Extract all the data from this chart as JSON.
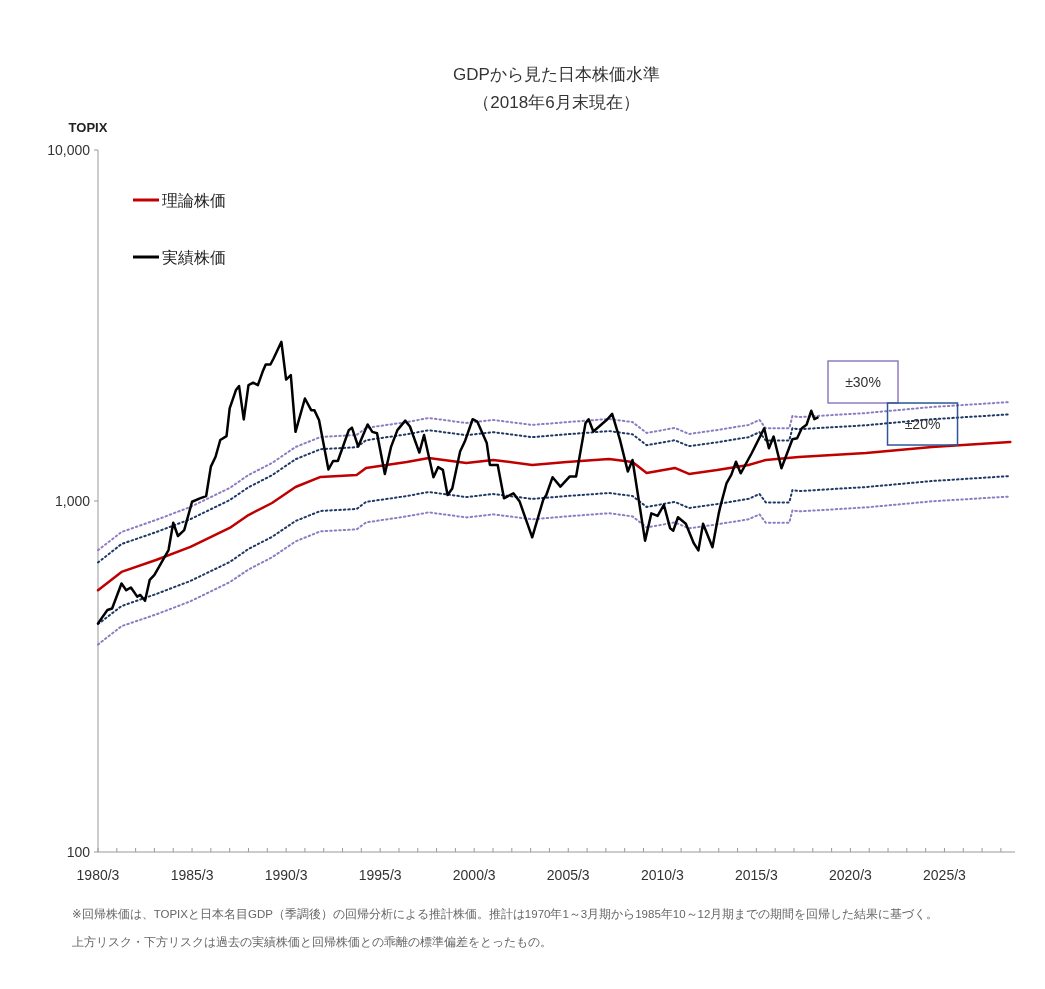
{
  "chart_data": {
    "type": "line",
    "title": "GDPから見た日本株価水準",
    "subtitle": "（2018年6月末現在）",
    "ylabel": "TOPIX",
    "log": true,
    "legend": "top left",
    "grid": false,
    "ylim": [
      100,
      10000
    ],
    "yticks": [
      {
        "value": 100,
        "label": "100"
      },
      {
        "value": 1000,
        "label": "1,000"
      },
      {
        "value": 10000,
        "label": "10,000"
      }
    ],
    "xlim": [
      "1980-03",
      "2028-12"
    ],
    "xticks": [
      {
        "value": "1980-03",
        "label": "1980/3"
      },
      {
        "value": "1981-03",
        "label": null
      },
      {
        "value": "1982-03",
        "label": null
      },
      {
        "value": "1983-03",
        "label": null
      },
      {
        "value": "1984-03",
        "label": null
      },
      {
        "value": "1985-03",
        "label": "1985/3"
      },
      {
        "value": "1986-03",
        "label": null
      },
      {
        "value": "1987-03",
        "label": null
      },
      {
        "value": "1988-03",
        "label": null
      },
      {
        "value": "1989-03",
        "label": null
      },
      {
        "value": "1990-03",
        "label": "1990/3"
      },
      {
        "value": "1991-03",
        "label": null
      },
      {
        "value": "1992-03",
        "label": null
      },
      {
        "value": "1993-03",
        "label": null
      },
      {
        "value": "1994-03",
        "label": null
      },
      {
        "value": "1995-03",
        "label": "1995/3"
      },
      {
        "value": "1996-03",
        "label": null
      },
      {
        "value": "1997-03",
        "label": null
      },
      {
        "value": "1998-03",
        "label": null
      },
      {
        "value": "1999-03",
        "label": null
      },
      {
        "value": "2000-03",
        "label": "2000/3"
      },
      {
        "value": "2001-03",
        "label": null
      },
      {
        "value": "2002-03",
        "label": null
      },
      {
        "value": "2003-03",
        "label": null
      },
      {
        "value": "2004-03",
        "label": null
      },
      {
        "value": "2005-03",
        "label": "2005/3"
      },
      {
        "value": "2006-03",
        "label": null
      },
      {
        "value": "2007-03",
        "label": null
      },
      {
        "value": "2008-03",
        "label": null
      },
      {
        "value": "2009-03",
        "label": null
      },
      {
        "value": "2010-03",
        "label": "2010/3"
      },
      {
        "value": "2011-03",
        "label": null
      },
      {
        "value": "2012-03",
        "label": null
      },
      {
        "value": "2013-03",
        "label": null
      },
      {
        "value": "2014-03",
        "label": null
      },
      {
        "value": "2015-03",
        "label": "2015/3"
      },
      {
        "value": "2016-03",
        "label": null
      },
      {
        "value": "2017-03",
        "label": null
      },
      {
        "value": "2018-03",
        "label": null
      },
      {
        "value": "2019-03",
        "label": null
      },
      {
        "value": "2020-03",
        "label": "2020/3"
      },
      {
        "value": "2021-03",
        "label": null
      },
      {
        "value": "2022-03",
        "label": null
      },
      {
        "value": "2023-03",
        "label": null
      },
      {
        "value": "2024-03",
        "label": null
      },
      {
        "value": "2025-03",
        "label": "2025/3"
      },
      {
        "value": "2026-03",
        "label": null
      },
      {
        "value": "2027-03",
        "label": null
      },
      {
        "value": "2028-03",
        "label": null
      }
    ],
    "series": [
      {
        "color": "#8e7cc3",
        "line_style": "dotted",
        "x": [
          "1980-03",
          "1981-06",
          "1983-04",
          "1985-02",
          "1987-03",
          "1988-03",
          "1989-06",
          "1990-09",
          "1992-01",
          "1993-12",
          "1994-06",
          "1996-08",
          "1997-10",
          "1999-10",
          "2001-03",
          "2003-04",
          "2005-02",
          "2007-05",
          "2008-08",
          "2009-05",
          "2010-11",
          "2011-08",
          "2013-02",
          "2014-10",
          "2015-05",
          "2015-09",
          "2016-12",
          "2017-02",
          "2017-06",
          "2021-01",
          "2024-07",
          "2028-09"
        ],
        "values": [
          724,
          816,
          883,
          962,
          1089,
          1186,
          1283,
          1425,
          1522,
          1542,
          1615,
          1678,
          1724,
          1668,
          1702,
          1647,
          1678,
          1713,
          1678,
          1563,
          1615,
          1552,
          1593,
          1647,
          1702,
          1611,
          1611,
          1746,
          1734,
          1781,
          1853,
          1914
        ]
      },
      {
        "color": "#1f3864",
        "line_style": "dotted",
        "x": [
          "1980-03",
          "1981-06",
          "1983-04",
          "1985-02",
          "1987-03",
          "1988-03",
          "1989-06",
          "1990-09",
          "1992-01",
          "1993-12",
          "1994-06",
          "1996-08",
          "1997-10",
          "1999-10",
          "2001-03",
          "2003-04",
          "2005-02",
          "2007-05",
          "2008-08",
          "2009-05",
          "2010-11",
          "2011-08",
          "2013-02",
          "2014-10",
          "2015-05",
          "2015-09",
          "2016-12",
          "2017-02",
          "2017-06",
          "2021-01",
          "2024-07",
          "2028-09"
        ],
        "values": [
          668,
          754,
          815,
          888,
          1006,
          1094,
          1184,
          1315,
          1405,
          1423,
          1490,
          1549,
          1591,
          1540,
          1571,
          1520,
          1549,
          1582,
          1549,
          1442,
          1490,
          1433,
          1470,
          1520,
          1571,
          1487,
          1487,
          1612,
          1601,
          1644,
          1710,
          1766
        ]
      },
      {
        "color": "#1f3864",
        "line_style": "dotted",
        "x": [
          "1980-03",
          "1981-06",
          "1983-04",
          "1985-02",
          "1987-03",
          "1988-03",
          "1989-06",
          "1990-09",
          "1992-01",
          "1993-12",
          "1994-06",
          "1996-08",
          "1997-10",
          "1999-10",
          "2001-03",
          "2003-04",
          "2005-02",
          "2007-05",
          "2008-08",
          "2009-05",
          "2010-11",
          "2011-08",
          "2013-02",
          "2014-10",
          "2015-05",
          "2015-09",
          "2016-12",
          "2017-02",
          "2017-06",
          "2021-01",
          "2024-07",
          "2028-09"
        ],
        "values": [
          446,
          502,
          543,
          592,
          670,
          730,
          790,
          877,
          937,
          949,
          994,
          1033,
          1061,
          1026,
          1047,
          1014,
          1033,
          1054,
          1033,
          962,
          994,
          955,
          980,
          1014,
          1047,
          991,
          991,
          1074,
          1067,
          1096,
          1140,
          1178
        ]
      },
      {
        "color": "#8e7cc3",
        "line_style": "dotted",
        "x": [
          "1980-03",
          "1981-06",
          "1983-04",
          "1985-02",
          "1987-03",
          "1988-03",
          "1989-06",
          "1990-09",
          "1992-01",
          "1993-12",
          "1994-06",
          "1996-08",
          "1997-10",
          "1999-10",
          "2001-03",
          "2003-04",
          "2005-02",
          "2007-05",
          "2008-08",
          "2009-05",
          "2010-11",
          "2011-08",
          "2013-02",
          "2014-10",
          "2015-05",
          "2015-09",
          "2016-12",
          "2017-02",
          "2017-06",
          "2021-01",
          "2024-07",
          "2028-09"
        ],
        "values": [
          390,
          440,
          475,
          518,
          587,
          638,
          691,
          767,
          820,
          830,
          869,
          904,
          928,
          898,
          916,
          887,
          904,
          923,
          904,
          841,
          869,
          836,
          858,
          887,
          916,
          867,
          867,
          940,
          934,
          959,
          998,
          1030
        ]
      },
      {
        "name": "理論株価",
        "color": "#c00000",
        "line_style": "solid",
        "x": [
          "1980-03",
          "1981-06",
          "1983-04",
          "1985-02",
          "1987-03",
          "1988-03",
          "1989-06",
          "1990-09",
          "1992-01",
          "1993-12",
          "1994-06",
          "1996-08",
          "1997-10",
          "1999-10",
          "2001-03",
          "2003-04",
          "2005-02",
          "2007-05",
          "2008-08",
          "2009-05",
          "2010-11",
          "2011-08",
          "2013-02",
          "2014-10",
          "2015-09",
          "2017-06",
          "2021-01",
          "2024-07",
          "2028-09"
        ],
        "values": [
          557,
          628,
          679,
          740,
          838,
          912,
          987,
          1096,
          1171,
          1186,
          1242,
          1291,
          1326,
          1283,
          1309,
          1267,
          1291,
          1318,
          1291,
          1202,
          1242,
          1194,
          1225,
          1267,
          1309,
          1334,
          1370,
          1425,
          1472
        ]
      },
      {
        "name": "実績株価",
        "color": "#000000",
        "line_style": "solid",
        "x": [
          "1980-03",
          "1980-09",
          "1980-12",
          "1981-06",
          "1981-09",
          "1981-12",
          "1982-04",
          "1982-06",
          "1982-09",
          "1982-12",
          "1983-03",
          "1983-12",
          "1984-03",
          "1984-06",
          "1984-10",
          "1985-03",
          "1985-08",
          "1985-12",
          "1986-03",
          "1986-06",
          "1986-09",
          "1987-01",
          "1987-03",
          "1987-07",
          "1987-09",
          "1987-12",
          "1988-03",
          "1988-06",
          "1988-09",
          "1988-12",
          "1989-02",
          "1989-05",
          "1989-07",
          "1989-12",
          "1990-03",
          "1990-06",
          "1990-09",
          "1991-03",
          "1991-07",
          "1991-09",
          "1991-12",
          "1992-06",
          "1992-09",
          "1992-12",
          "1993-07",
          "1993-09",
          "1994-01",
          "1994-07",
          "1994-10",
          "1995-01",
          "1995-06",
          "1995-10",
          "1996-02",
          "1996-07",
          "1996-10",
          "1997-04",
          "1997-07",
          "1998-01",
          "1998-04",
          "1998-07",
          "1998-10",
          "1999-01",
          "1999-06",
          "1999-09",
          "2000-02",
          "2000-05",
          "2000-11",
          "2001-01",
          "2001-06",
          "2001-10",
          "2002-04",
          "2002-08",
          "2003-04",
          "2003-11",
          "2004-01",
          "2004-05",
          "2004-10",
          "2005-04",
          "2005-08",
          "2006-02",
          "2006-04",
          "2006-07",
          "2007-04",
          "2007-07",
          "2007-12",
          "2008-05",
          "2008-08",
          "2009-04",
          "2009-08",
          "2009-12",
          "2010-04",
          "2010-08",
          "2010-10",
          "2011-01",
          "2011-06",
          "2011-11",
          "2012-02",
          "2012-05",
          "2012-11",
          "2013-03",
          "2013-04",
          "2013-08",
          "2013-11",
          "2014-02",
          "2014-05",
          "2014-12",
          "2015-08",
          "2015-11",
          "2016-02",
          "2016-07",
          "2017-02",
          "2017-05",
          "2017-08",
          "2017-11",
          "2018-02",
          "2018-04",
          "2018-06"
        ],
        "values": [
          448,
          489,
          494,
          582,
          557,
          567,
          534,
          540,
          520,
          596,
          616,
          725,
          867,
          795,
          826,
          995,
          1017,
          1033,
          1253,
          1337,
          1492,
          1531,
          1837,
          2070,
          2125,
          1708,
          2139,
          2173,
          2139,
          2333,
          2449,
          2449,
          2547,
          2842,
          2218,
          2284,
          1574,
          1959,
          1815,
          1815,
          1702,
          1230,
          1300,
          1300,
          1592,
          1618,
          1429,
          1652,
          1574,
          1559,
          1194,
          1429,
          1592,
          1694,
          1630,
          1374,
          1542,
          1169,
          1249,
          1227,
          1040,
          1086,
          1384,
          1477,
          1710,
          1683,
          1462,
          1267,
          1267,
          1018,
          1052,
          996,
          788,
          1007,
          1040,
          1169,
          1099,
          1175,
          1175,
          1667,
          1710,
          1578,
          1710,
          1771,
          1493,
          1213,
          1309,
          771,
          922,
          907,
          975,
          836,
          823,
          899,
          861,
          759,
          723,
          861,
          738,
          922,
          964,
          1125,
          1187,
          1294,
          1199,
          1368,
          1611,
          1413,
          1526,
          1240,
          1500,
          1510,
          1611,
          1648,
          1807,
          1711,
          1729
        ]
      }
    ],
    "annotations": [
      "±30%",
      {
        "text": "±20%",
        "x": "2024-01",
        "y": 1657
      },
      "※回帰株価は、TOPIXと日本名目GDP（季調後）の回帰分析による推計株価。推計は1970年1～3月期から1985年10～12月期までの期間を回帰した結果に基づく。",
      "上方リスク・下方リスクは過去の実績株価と回帰株価との乖離の標準偏差をとったもの。"
    ]
  }
}
